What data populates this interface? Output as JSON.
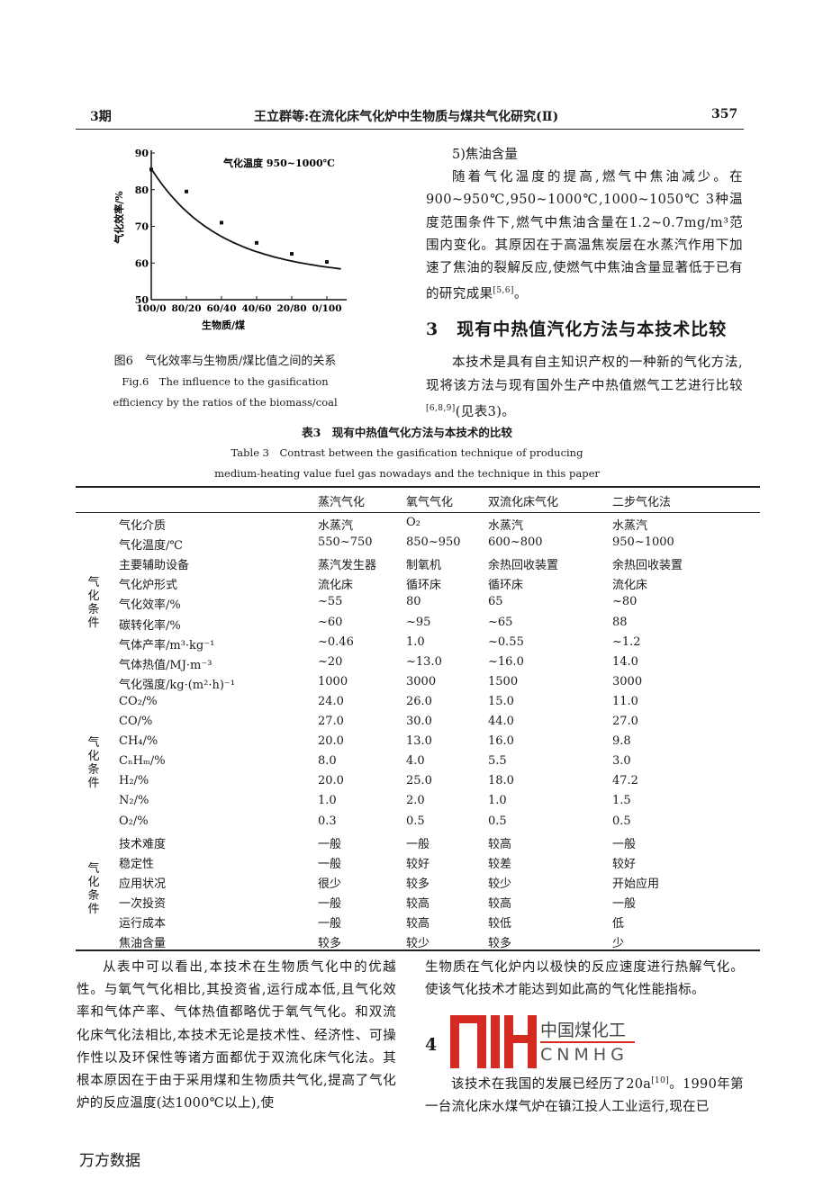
{
  "header": {
    "issue": "3期",
    "title": "王立群等:在流化床气化炉中生物质与煤共气化研究(Ⅱ)",
    "page": "357"
  },
  "chart_data": {
    "type": "line",
    "annotation": "气化温度 950~1000℃",
    "xlabel": "生物质/煤",
    "ylabel": "气化效率/%",
    "categories": [
      "100/0",
      "80/20",
      "60/40",
      "40/60",
      "20/80",
      "0/100"
    ],
    "values": [
      85.5,
      79.5,
      71,
      65.5,
      62.5,
      60.3
    ],
    "ylim": [
      50,
      90
    ],
    "yticks": [
      50,
      60,
      70,
      80,
      90
    ],
    "grid": false,
    "series_style": "points with smooth fitted curve"
  },
  "figure": {
    "caption_cn": "图6　气化效率与生物质/煤比值之间的关系",
    "caption_en_1": "Fig.6　The influence to the gasification",
    "caption_en_2": "efficiency by the ratios of the biomass/coal"
  },
  "right_top": {
    "subheading": "5)焦油含量",
    "para1": "随着气化温度的提高,燃气中焦油减少。在900~950℃,950~1000℃,1000~1050℃ 3种温度范围条件下,燃气中焦油含量在1.2~0.7mg/m³范围内变化。其原因在于高温焦炭层在水蒸汽作用下加速了焦油的裂解反应,使燃气中焦油含量显著低于已有的研究成果",
    "para1_ref": "[5,6]",
    "para1_end": "。",
    "section3": "3　现有中热值汽化方法与本技术比较",
    "para2": "本技术是具有自主知识产权的一种新的气化方法,现将该方法与现有国外生产中热值燃气工艺进行比较",
    "para2_ref": "[6,8,9]",
    "para2_end": "(见表3)。"
  },
  "table": {
    "title_cn": "表3　现有中热值气化方法与本技术的比较",
    "title_en_1": "Table 3　Contrast between the gasification technique of producing",
    "title_en_2": "medium-heating value fuel gas nowadays and the technique in this paper",
    "columns": [
      "蒸汽气化",
      "氧气气化",
      "双流化床气化",
      "二步气化法"
    ],
    "group_labels": [
      "气化条件",
      "气化条件",
      "气化条件"
    ],
    "rows": [
      {
        "param": "气化介质",
        "v": [
          "水蒸汽",
          "O₂",
          "水蒸汽",
          "水蒸汽"
        ]
      },
      {
        "param": "气化温度/℃",
        "v": [
          "550~750",
          "850~950",
          "600~800",
          "950~1000"
        ]
      },
      {
        "param": "主要辅助设备",
        "v": [
          "蒸汽发生器",
          "制氧机",
          "余热回收装置",
          "余热回收装置"
        ]
      },
      {
        "param": "气化炉形式",
        "v": [
          "流化床",
          "循环床",
          "循环床",
          "流化床"
        ]
      },
      {
        "param": "气化效率/%",
        "v": [
          "~55",
          "80",
          "65",
          "~80"
        ]
      },
      {
        "param": "碳转化率/%",
        "v": [
          "~60",
          "~95",
          "~65",
          "88"
        ]
      },
      {
        "param": "气体产率/m³·kg⁻¹",
        "v": [
          "~0.46",
          "1.0",
          "~0.55",
          "~1.2"
        ]
      },
      {
        "param": "气体热值/MJ·m⁻³",
        "v": [
          "~20",
          "~13.0",
          "~16.0",
          "14.0"
        ]
      },
      {
        "param": "气化强度/kg·(m²·h)⁻¹",
        "v": [
          "1000",
          "3000",
          "1500",
          "3000"
        ]
      },
      {
        "param": "CO₂/%",
        "v": [
          "24.0",
          "26.0",
          "15.0",
          "11.0"
        ]
      },
      {
        "param": "CO/%",
        "v": [
          "27.0",
          "30.0",
          "44.0",
          "27.0"
        ]
      },
      {
        "param": "CH₄/%",
        "v": [
          "20.0",
          "13.0",
          "16.0",
          "9.8"
        ]
      },
      {
        "param": "CₙHₘ/%",
        "v": [
          "8.0",
          "4.0",
          "5.5",
          "3.0"
        ]
      },
      {
        "param": "H₂/%",
        "v": [
          "20.0",
          "25.0",
          "18.0",
          "47.2"
        ]
      },
      {
        "param": "N₂/%",
        "v": [
          "1.0",
          "2.0",
          "1.0",
          "1.5"
        ]
      },
      {
        "param": "O₂/%",
        "v": [
          "0.3",
          "0.5",
          "0.5",
          "0.5"
        ]
      },
      {
        "param": "技术难度",
        "v": [
          "一般",
          "一般",
          "较高",
          "一般"
        ]
      },
      {
        "param": "稳定性",
        "v": [
          "一般",
          "较好",
          "较差",
          "较好"
        ]
      },
      {
        "param": "应用状况",
        "v": [
          "很少",
          "较多",
          "较少",
          "开始应用"
        ]
      },
      {
        "param": "一次投资",
        "v": [
          "一般",
          "较高",
          "较高",
          "一般"
        ]
      },
      {
        "param": "运行成本",
        "v": [
          "一般",
          "较高",
          "较低",
          "低"
        ]
      },
      {
        "param": "焦油含量",
        "v": [
          "较多",
          "较少",
          "较多",
          "少"
        ]
      }
    ]
  },
  "bottom": {
    "left_para": "从表中可以看出,本技术在生物质气化中的优越性。与氧气气化相比,其投资省,运行成本低,且气化效率和气体产率、气体热值都略优于氧气气化。和双流化床气化法相比,本技术无论是技术性、经济性、可操作性以及环保性等诸方面都优于双流化床气化法。其根本原因在于由于采用煤和生物质共气化,提高了气化炉的反应温度(达1000℃以上),使",
    "right_para": "生物质在气化炉内以极快的反应速度进行热解气化。使该气化技术才能达到如此高的气化性能指标。",
    "section4": "4",
    "para4": "该技术在我国的发展已经历了20a",
    "para4_ref": "[10]",
    "para4_end": "。1990年第一台流化床水煤气炉在镇江投人工业运行,现在已"
  },
  "watermark": {
    "logo_cn": "中国煤化工",
    "logo_en": "CNMHG",
    "color": "#d42a22"
  },
  "footer": {
    "source": "万方数据"
  }
}
